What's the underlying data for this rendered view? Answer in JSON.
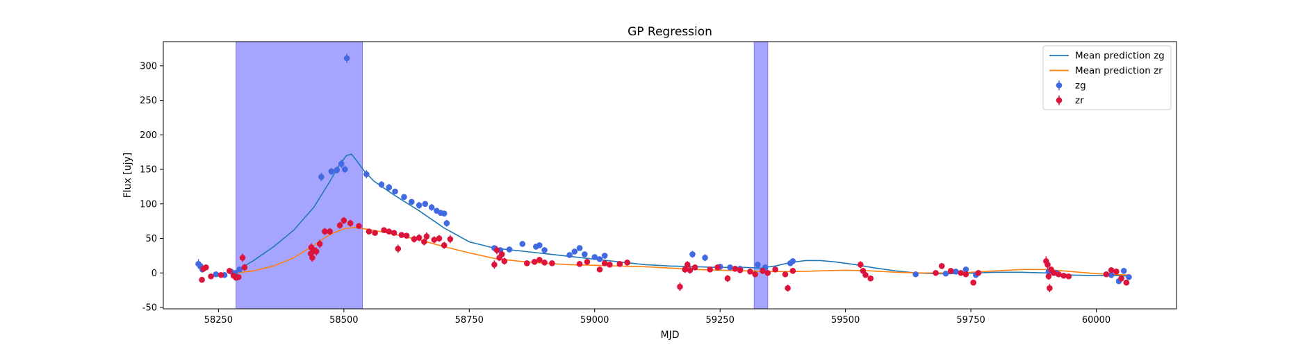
{
  "chart_data": {
    "type": "scatter",
    "title": "GP Regression",
    "xlabel": "MJD",
    "ylabel": "Flux [ujy]",
    "xlim": [
      58140,
      60160
    ],
    "ylim": [
      -52,
      335
    ],
    "xticks": [
      58250,
      58500,
      58750,
      59000,
      59250,
      59500,
      59750,
      60000
    ],
    "yticks": [
      -50,
      0,
      50,
      100,
      150,
      200,
      250,
      300
    ],
    "grid": false,
    "legend_position": "top-right",
    "shaded_regions": [
      {
        "x0": 58285,
        "x1": 58537,
        "color": "#a5a5ff"
      },
      {
        "x0": 59318,
        "x1": 59345,
        "color": "#a5a5ff"
      }
    ],
    "lines": [
      {
        "name": "Mean prediction zg",
        "color": "#1f77b4",
        "x": [
          58285,
          58320,
          58360,
          58400,
          58440,
          58470,
          58490,
          58505,
          58515,
          58525,
          58540,
          58560,
          58600,
          58650,
          58700,
          58750,
          58800,
          58850,
          58900,
          58950,
          59000,
          59050,
          59100,
          59150,
          59200,
          59250,
          59300,
          59330,
          59360,
          59390,
          59420,
          59450,
          59480,
          59520,
          59560,
          59600,
          59640,
          59680,
          59720,
          59760,
          59800,
          59850,
          59900,
          59950,
          60000,
          60050,
          60065
        ],
        "y": [
          3,
          18,
          38,
          62,
          95,
          130,
          155,
          170,
          172,
          163,
          148,
          133,
          113,
          90,
          65,
          45,
          36,
          32,
          28,
          24,
          20,
          16,
          12,
          10,
          9,
          8,
          8,
          7,
          10,
          15,
          18,
          18,
          16,
          12,
          7,
          3,
          0,
          -1,
          -1,
          0,
          1,
          1,
          0,
          -3,
          -4,
          -4,
          -5
        ]
      },
      {
        "name": "Mean prediction zr",
        "color": "#ff7f0e",
        "x": [
          58285,
          58320,
          58360,
          58400,
          58440,
          58470,
          58500,
          58520,
          58540,
          58580,
          58620,
          58660,
          58700,
          58750,
          58800,
          58850,
          58900,
          58950,
          59000,
          59050,
          59100,
          59150,
          59200,
          59250,
          59300,
          59350,
          59400,
          59450,
          59500,
          59550,
          59600,
          59650,
          59700,
          59750,
          59800,
          59850,
          59900,
          59950,
          60000,
          60065
        ],
        "y": [
          0,
          3,
          10,
          22,
          40,
          55,
          64,
          66,
          64,
          59,
          53,
          46,
          38,
          29,
          21,
          17,
          14,
          12,
          11,
          10,
          9,
          7,
          5,
          4,
          3,
          2,
          2,
          3,
          4,
          3,
          1,
          0,
          0,
          1,
          3,
          5,
          5,
          2,
          -1,
          -3
        ]
      }
    ],
    "series": [
      {
        "name": "zg",
        "color": "#4169e1",
        "points": [
          [
            58210,
            13,
            7
          ],
          [
            58214,
            10,
            5
          ],
          [
            58218,
            5,
            4
          ],
          [
            58245,
            -2,
            3
          ],
          [
            58262,
            -3,
            3
          ],
          [
            58275,
            2,
            4
          ],
          [
            58283,
            0,
            3
          ],
          [
            58292,
            5,
            4
          ],
          [
            58455,
            139,
            6
          ],
          [
            58475,
            147,
            5
          ],
          [
            58486,
            149,
            5
          ],
          [
            58495,
            158,
            6
          ],
          [
            58502,
            150,
            5
          ],
          [
            58506,
            311,
            7
          ],
          [
            58545,
            143,
            6
          ],
          [
            58575,
            128,
            5
          ],
          [
            58590,
            124,
            5
          ],
          [
            58602,
            118,
            4
          ],
          [
            58620,
            110,
            4
          ],
          [
            58635,
            103,
            4
          ],
          [
            58650,
            98,
            5
          ],
          [
            58662,
            100,
            4
          ],
          [
            58675,
            95,
            5
          ],
          [
            58685,
            90,
            4
          ],
          [
            58693,
            87,
            4
          ],
          [
            58700,
            86,
            4
          ],
          [
            58705,
            72,
            5
          ],
          [
            58800,
            36,
            4
          ],
          [
            58812,
            33,
            4
          ],
          [
            58830,
            34,
            4
          ],
          [
            58856,
            42,
            3
          ],
          [
            58883,
            38,
            4
          ],
          [
            58890,
            40,
            4
          ],
          [
            58900,
            33,
            4
          ],
          [
            58950,
            26,
            4
          ],
          [
            58960,
            31,
            4
          ],
          [
            58970,
            36,
            4
          ],
          [
            58980,
            27,
            4
          ],
          [
            59000,
            23,
            4
          ],
          [
            59010,
            20,
            4
          ],
          [
            59020,
            25,
            4
          ],
          [
            59195,
            27,
            5
          ],
          [
            59220,
            22,
            5
          ],
          [
            59250,
            9,
            4
          ],
          [
            59270,
            8,
            4
          ],
          [
            59290,
            6,
            4
          ],
          [
            59325,
            12,
            4
          ],
          [
            59340,
            8,
            4
          ],
          [
            59390,
            14,
            4
          ],
          [
            59395,
            17,
            4
          ],
          [
            59640,
            -2,
            3
          ],
          [
            59700,
            -1,
            3
          ],
          [
            59720,
            2,
            3
          ],
          [
            59740,
            5,
            3
          ],
          [
            59760,
            -3,
            3
          ],
          [
            59905,
            2,
            3
          ],
          [
            59920,
            0,
            3
          ],
          [
            60030,
            -3,
            3
          ],
          [
            60045,
            -12,
            4
          ],
          [
            60055,
            3,
            4
          ],
          [
            60065,
            -6,
            3
          ]
        ]
      },
      {
        "name": "zr",
        "color": "#dc143c",
        "points": [
          [
            58217,
            -10,
            4
          ],
          [
            58220,
            6,
            4
          ],
          [
            58225,
            8,
            4
          ],
          [
            58235,
            -5,
            4
          ],
          [
            58255,
            -3,
            3
          ],
          [
            58272,
            3,
            4
          ],
          [
            58280,
            -4,
            3
          ],
          [
            58285,
            -7,
            3
          ],
          [
            58290,
            -6,
            3
          ],
          [
            58298,
            22,
            6
          ],
          [
            58302,
            8,
            5
          ],
          [
            58434,
            28,
            7
          ],
          [
            58435,
            37,
            6
          ],
          [
            58437,
            22,
            6
          ],
          [
            58440,
            33,
            6
          ],
          [
            58445,
            31,
            6
          ],
          [
            58452,
            42,
            6
          ],
          [
            58462,
            60,
            5
          ],
          [
            58472,
            60,
            5
          ],
          [
            58492,
            69,
            5
          ],
          [
            58500,
            76,
            5
          ],
          [
            58513,
            72,
            5
          ],
          [
            58530,
            68,
            4
          ],
          [
            58550,
            60,
            4
          ],
          [
            58562,
            58,
            4
          ],
          [
            58580,
            62,
            4
          ],
          [
            58590,
            60,
            4
          ],
          [
            58600,
            58,
            4
          ],
          [
            58608,
            35,
            6
          ],
          [
            58615,
            55,
            4
          ],
          [
            58625,
            54,
            4
          ],
          [
            58640,
            49,
            5
          ],
          [
            58650,
            51,
            5
          ],
          [
            58660,
            45,
            5
          ],
          [
            58665,
            53,
            6
          ],
          [
            58680,
            48,
            5
          ],
          [
            58690,
            50,
            5
          ],
          [
            58700,
            40,
            5
          ],
          [
            58712,
            49,
            6
          ],
          [
            58800,
            12,
            6
          ],
          [
            58805,
            33,
            6
          ],
          [
            58810,
            22,
            5
          ],
          [
            58815,
            27,
            5
          ],
          [
            58820,
            17,
            5
          ],
          [
            58865,
            14,
            4
          ],
          [
            58880,
            16,
            4
          ],
          [
            58890,
            19,
            4
          ],
          [
            58900,
            15,
            4
          ],
          [
            58915,
            14,
            4
          ],
          [
            58970,
            13,
            4
          ],
          [
            58985,
            16,
            4
          ],
          [
            59010,
            5,
            4
          ],
          [
            59020,
            14,
            4
          ],
          [
            59030,
            12,
            4
          ],
          [
            59050,
            13,
            4
          ],
          [
            59065,
            15,
            4
          ],
          [
            59170,
            -20,
            6
          ],
          [
            59180,
            5,
            5
          ],
          [
            59185,
            12,
            5
          ],
          [
            59190,
            4,
            5
          ],
          [
            59200,
            8,
            4
          ],
          [
            59230,
            5,
            4
          ],
          [
            59245,
            8,
            4
          ],
          [
            59265,
            -8,
            5
          ],
          [
            59280,
            6,
            4
          ],
          [
            59290,
            4,
            4
          ],
          [
            59310,
            2,
            4
          ],
          [
            59320,
            -2,
            4
          ],
          [
            59335,
            3,
            4
          ],
          [
            59345,
            0,
            4
          ],
          [
            59360,
            5,
            4
          ],
          [
            59380,
            -2,
            4
          ],
          [
            59385,
            -22,
            5
          ],
          [
            59395,
            3,
            4
          ],
          [
            59530,
            12,
            5
          ],
          [
            59535,
            3,
            4
          ],
          [
            59540,
            -3,
            4
          ],
          [
            59550,
            -8,
            4
          ],
          [
            59680,
            0,
            3
          ],
          [
            59692,
            10,
            4
          ],
          [
            59710,
            3,
            3
          ],
          [
            59730,
            0,
            3
          ],
          [
            59740,
            -2,
            3
          ],
          [
            59755,
            -14,
            4
          ],
          [
            59765,
            0,
            3
          ],
          [
            59900,
            17,
            7
          ],
          [
            59903,
            12,
            6
          ],
          [
            59905,
            -5,
            5
          ],
          [
            59907,
            -22,
            6
          ],
          [
            59910,
            5,
            4
          ],
          [
            59915,
            0,
            4
          ],
          [
            59925,
            -2,
            3
          ],
          [
            59935,
            -4,
            3
          ],
          [
            59945,
            -5,
            3
          ],
          [
            60020,
            -2,
            3
          ],
          [
            60030,
            4,
            3
          ],
          [
            60040,
            2,
            3
          ],
          [
            60050,
            -8,
            4
          ],
          [
            60060,
            -14,
            4
          ]
        ]
      }
    ]
  }
}
